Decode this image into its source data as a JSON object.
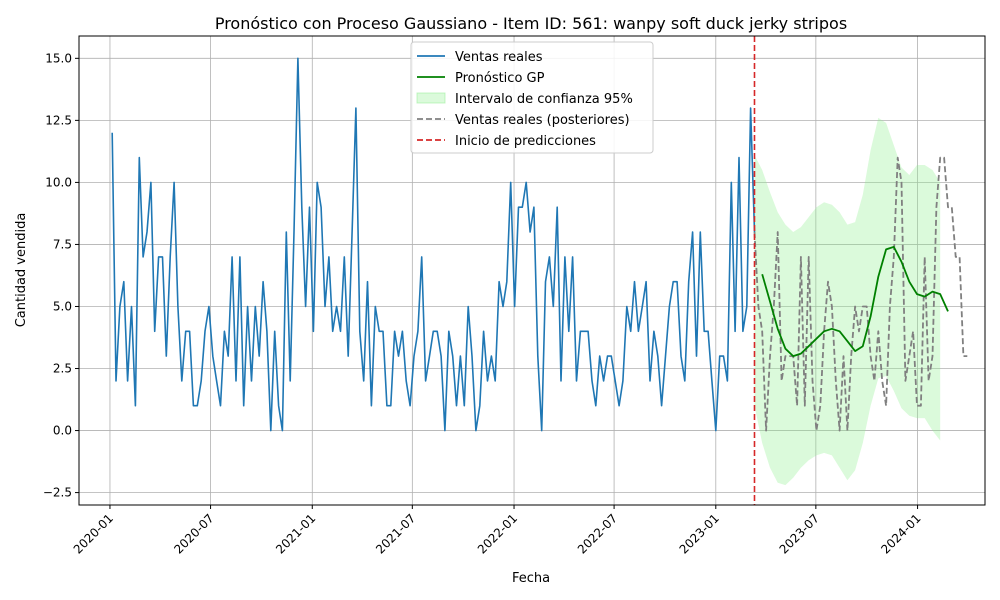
{
  "chart_data": {
    "type": "line",
    "title": "Pronóstico con Proceso Gaussiano - Item ID: 561: wanpy soft duck jerky stripos",
    "xlabel": "Fecha",
    "ylabel": "Cantidad vendida",
    "xlim": [
      "2019-11-06",
      "2024-05-02"
    ],
    "ylim": [
      -3.0,
      15.9
    ],
    "grid": true,
    "legend_position": "top-center",
    "x_ticks": [
      "2020-01",
      "2020-07",
      "2021-01",
      "2021-07",
      "2022-01",
      "2022-07",
      "2023-01",
      "2023-07",
      "2024-01"
    ],
    "x_tick_dates": [
      "2020-01-01",
      "2020-07-01",
      "2021-01-01",
      "2021-07-01",
      "2022-01-01",
      "2022-07-01",
      "2023-01-01",
      "2023-07-01",
      "2024-01-01"
    ],
    "y_ticks": [
      "−2.5",
      "0.0",
      "2.5",
      "5.0",
      "7.5",
      "10.0",
      "12.5",
      "15.0"
    ],
    "y_tick_values": [
      -2.5,
      0,
      2.5,
      5,
      7.5,
      10,
      12.5,
      15
    ],
    "legend": [
      {
        "label": "Ventas reales",
        "color": "#1f77b4",
        "style": "solid"
      },
      {
        "label": "Pronóstico GP",
        "color": "#008000",
        "style": "solid"
      },
      {
        "label": "Intervalo de confianza 95%",
        "color": "#90ee90",
        "style": "fill"
      },
      {
        "label": "Ventas reales (posteriores)",
        "color": "#808080",
        "style": "dashed"
      },
      {
        "label": "Inicio de predicciones",
        "color": "#d62728",
        "style": "dashed"
      }
    ],
    "series": [
      {
        "name": "Ventas reales",
        "color": "#1f77b4",
        "start": "2020-01-05",
        "step_days": 7,
        "values": [
          12,
          2,
          5,
          6,
          2,
          5,
          1,
          11,
          7,
          8,
          10,
          4,
          7,
          7,
          3,
          7,
          10,
          5,
          2,
          4,
          4,
          1,
          1,
          2,
          4,
          5,
          3,
          2,
          1,
          4,
          3,
          7,
          2,
          7,
          1,
          5,
          2,
          5,
          3,
          6,
          4,
          0,
          4,
          1,
          0,
          8,
          2,
          8,
          15,
          9,
          5,
          9,
          4,
          10,
          9,
          5,
          7,
          4,
          5,
          4,
          7,
          3,
          8,
          13,
          4,
          2,
          6,
          1,
          5,
          4,
          4,
          1,
          1,
          4,
          3,
          4,
          2,
          1,
          3,
          4,
          7,
          2,
          3,
          4,
          4,
          3,
          0,
          4,
          3,
          1,
          3,
          1,
          5,
          3,
          0,
          1,
          4,
          2,
          3,
          2,
          6,
          5,
          6,
          10,
          5,
          9,
          9,
          10,
          8,
          9,
          3,
          0,
          6,
          7,
          5,
          9,
          2,
          7,
          4,
          7,
          2,
          4,
          4,
          4,
          2,
          1,
          3,
          2,
          3,
          3,
          2,
          1,
          2,
          5,
          4,
          6,
          4,
          5,
          6,
          2,
          4,
          3,
          1,
          3,
          5,
          6,
          6,
          3,
          2,
          6,
          8,
          3,
          8,
          4,
          4,
          2,
          0,
          3,
          3,
          2,
          10,
          4,
          11,
          4,
          5,
          13,
          8
        ]
      },
      {
        "name": "Ventas reales (posteriores)",
        "color": "#808080",
        "start": "2023-03-12",
        "step_days": 7,
        "values": [
          8,
          5,
          4,
          0,
          3,
          5,
          8,
          2,
          3,
          3,
          3,
          1,
          7,
          1,
          7,
          2,
          0,
          1,
          4,
          6,
          5,
          2,
          0,
          3,
          0,
          3,
          5,
          4,
          5,
          5,
          3,
          2,
          4,
          2,
          1,
          5,
          7,
          11,
          10,
          2,
          3,
          4,
          1,
          1,
          7,
          2,
          3,
          9,
          11,
          11,
          9,
          9,
          7,
          7,
          3,
          3
        ]
      },
      {
        "name": "Pronóstico GP",
        "color": "#008000",
        "start": "2023-03-26",
        "step_days": 14,
        "values": [
          6.3,
          5.2,
          4.1,
          3.3,
          3.0,
          3.1,
          3.4,
          3.7,
          4.0,
          4.1,
          4.0,
          3.6,
          3.2,
          3.4,
          4.6,
          6.2,
          7.3,
          7.4,
          6.8,
          6.0,
          5.5,
          5.4,
          5.6,
          5.5,
          4.8
        ]
      },
      {
        "name": "Intervalo de confianza 95%",
        "color": "#90ee90",
        "start": "2023-03-12",
        "step_days": 14,
        "upper": [
          11.1,
          10.5,
          9.6,
          8.8,
          8.3,
          8.0,
          8.2,
          8.6,
          9.0,
          9.2,
          9.1,
          8.8,
          8.3,
          8.4,
          9.5,
          11.3,
          12.6,
          12.4,
          11.5,
          10.6,
          10.3,
          10.7,
          10.7,
          10.5,
          10.0
        ],
        "lower": [
          1.0,
          -0.5,
          -1.5,
          -2.1,
          -2.2,
          -1.9,
          -1.5,
          -1.2,
          -1.0,
          -0.9,
          -1.0,
          -1.5,
          -2.0,
          -1.6,
          -0.5,
          1.0,
          2.1,
          2.2,
          1.6,
          0.9,
          0.6,
          0.5,
          0.5,
          0.0,
          -0.4
        ]
      }
    ],
    "prediction_start": "2023-03-12"
  }
}
